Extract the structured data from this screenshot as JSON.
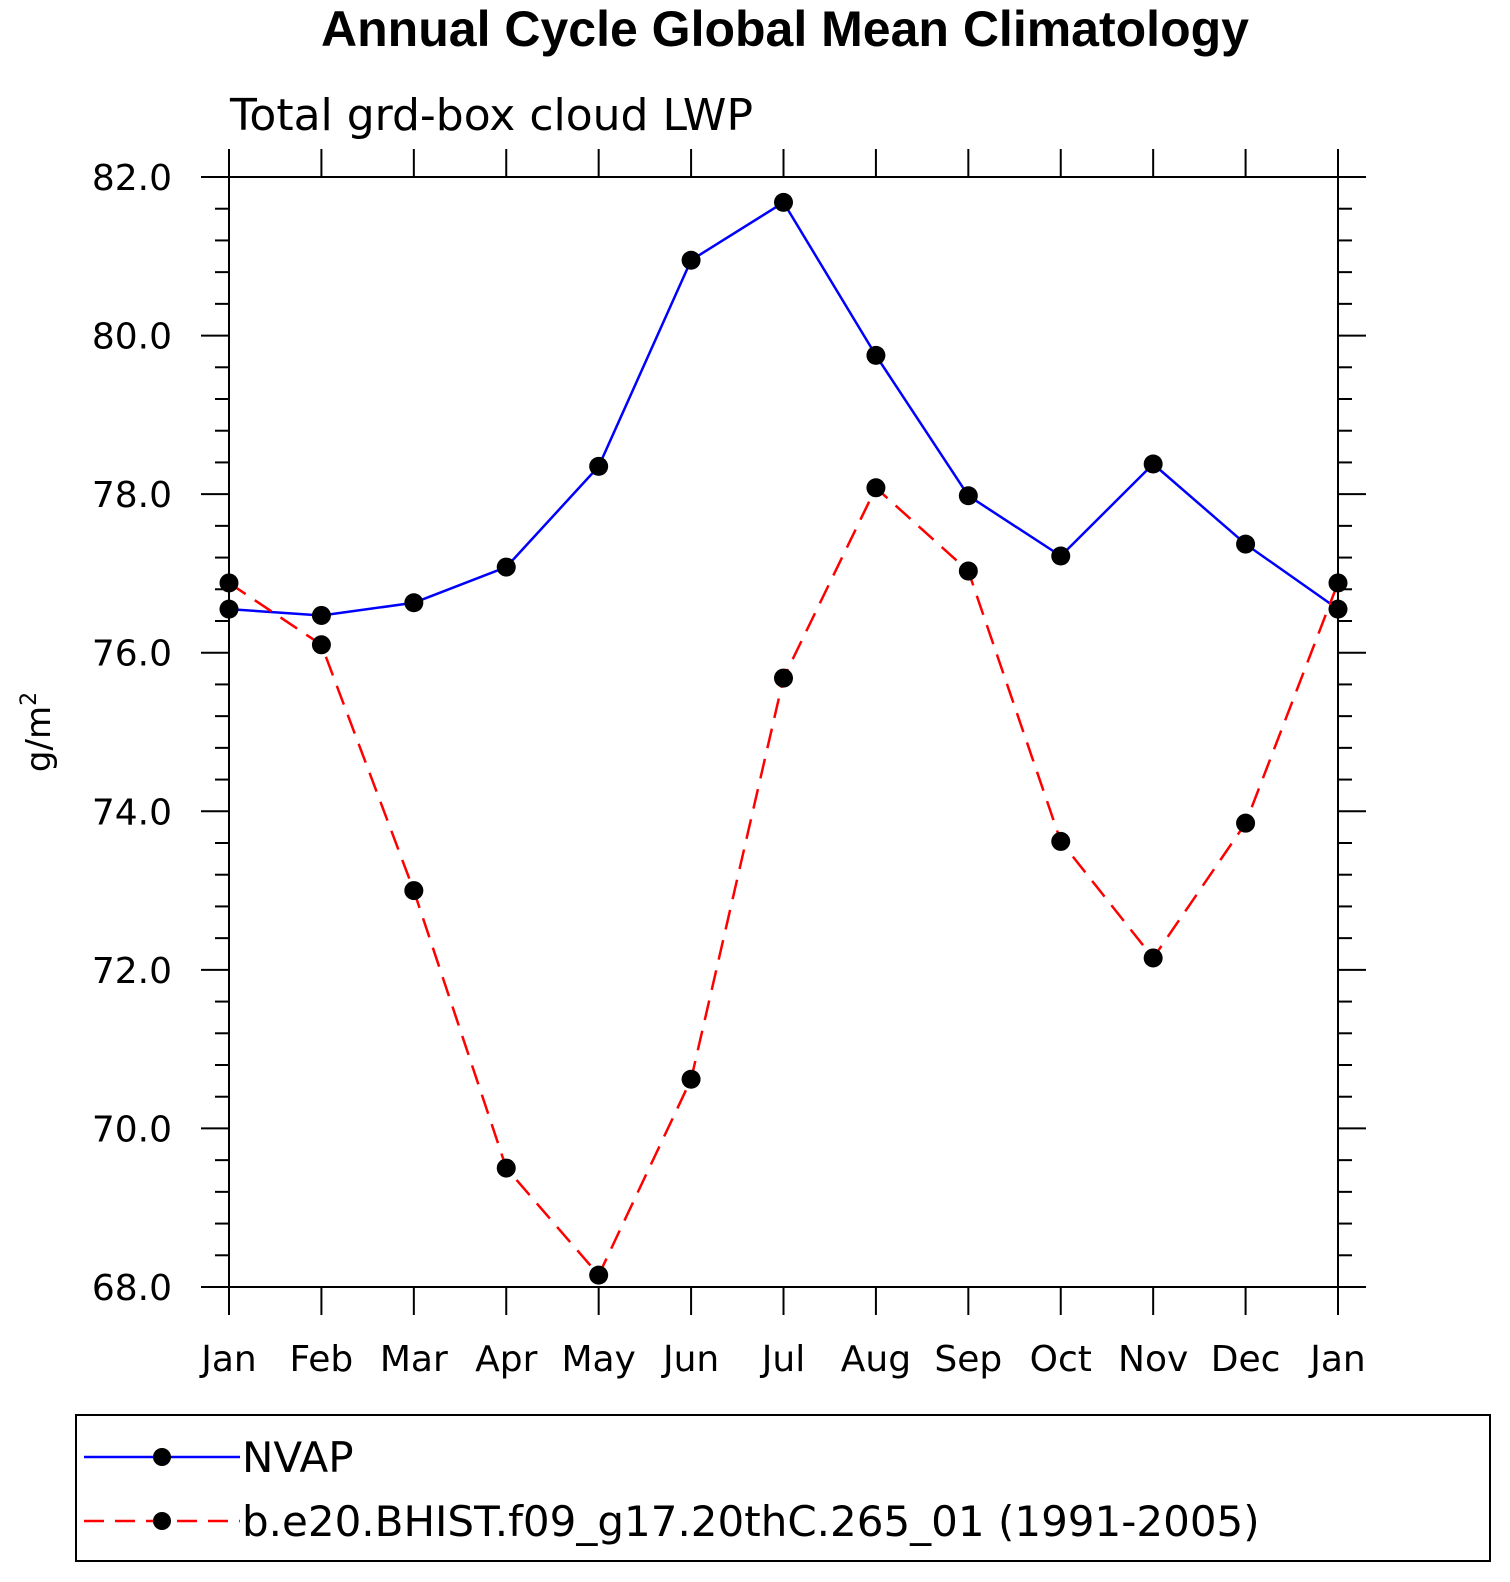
{
  "chart_data": {
    "type": "line",
    "title": "Annual Cycle Global Mean Climatology",
    "subtitle": "Total grd-box cloud LWP",
    "ylabel": "g/m",
    "ylabel_superscript": "2",
    "xlabel": "",
    "ylim": [
      68.0,
      82.0
    ],
    "yticks": [
      "68.0",
      "70.0",
      "72.0",
      "74.0",
      "76.0",
      "78.0",
      "80.0",
      "82.0"
    ],
    "categories": [
      "Jan",
      "Feb",
      "Mar",
      "Apr",
      "May",
      "Jun",
      "Jul",
      "Aug",
      "Sep",
      "Oct",
      "Nov",
      "Dec",
      "Jan"
    ],
    "series": [
      {
        "name": "NVAP",
        "color": "#0000ff",
        "style": "solid",
        "values": [
          76.55,
          76.47,
          76.63,
          77.08,
          78.35,
          80.95,
          81.68,
          79.75,
          77.98,
          77.22,
          78.38,
          77.37,
          76.55
        ]
      },
      {
        "name": "b.e20.BHIST.f09_g17.20thC.265_01 (1991-2005)",
        "color": "#ff0000",
        "style": "dashed",
        "values": [
          76.88,
          76.1,
          73.0,
          69.5,
          68.15,
          70.62,
          75.68,
          78.08,
          77.03,
          73.62,
          72.15,
          73.85,
          76.88
        ]
      }
    ],
    "legend_position": "bottom",
    "grid": false
  }
}
